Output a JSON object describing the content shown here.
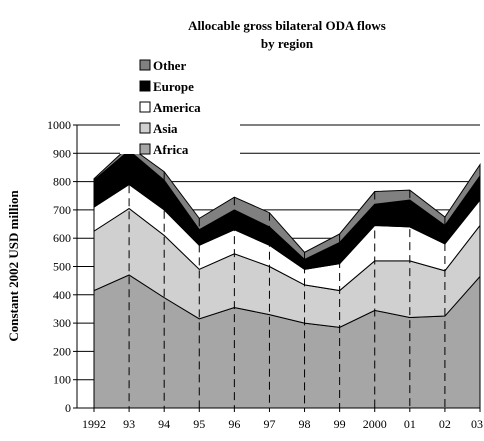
{
  "chart_data": {
    "type": "area",
    "title_line1": "Allocable gross bilateral ODA flows",
    "title_line2": "by region",
    "ylabel": "Constant 2002 USD million",
    "xlabel": "",
    "categories": [
      "1992",
      "93",
      "94",
      "95",
      "96",
      "97",
      "98",
      "99",
      "2000",
      "01",
      "02",
      "03"
    ],
    "ylim": [
      0,
      1000
    ],
    "yticks": [
      "0",
      "100",
      "200",
      "300",
      "400",
      "500",
      "600",
      "700",
      "800",
      "900",
      "1000"
    ],
    "grid": "horizontal",
    "stacked": true,
    "legend_position": "top-left",
    "legend_order": [
      "Other",
      "Europe",
      "America",
      "Asia",
      "Africa"
    ],
    "series": [
      {
        "name": "Africa",
        "color": "#a6a6a6",
        "values": [
          415,
          470,
          390,
          315,
          355,
          330,
          300,
          285,
          345,
          320,
          325,
          465
        ]
      },
      {
        "name": "Asia",
        "color": "#d0d0d0",
        "values": [
          210,
          235,
          220,
          175,
          190,
          170,
          135,
          130,
          175,
          200,
          160,
          180
        ]
      },
      {
        "name": "America",
        "color": "#ffffff",
        "values": [
          85,
          85,
          90,
          85,
          85,
          75,
          55,
          95,
          125,
          120,
          95,
          90
        ]
      },
      {
        "name": "Europe",
        "color": "#000000",
        "values": [
          95,
          120,
          105,
          55,
          70,
          65,
          35,
          75,
          75,
          95,
          65,
          85
        ]
      },
      {
        "name": "Other",
        "color": "#808080",
        "values": [
          5,
          15,
          30,
          40,
          45,
          50,
          25,
          30,
          45,
          35,
          30,
          40
        ]
      }
    ]
  }
}
